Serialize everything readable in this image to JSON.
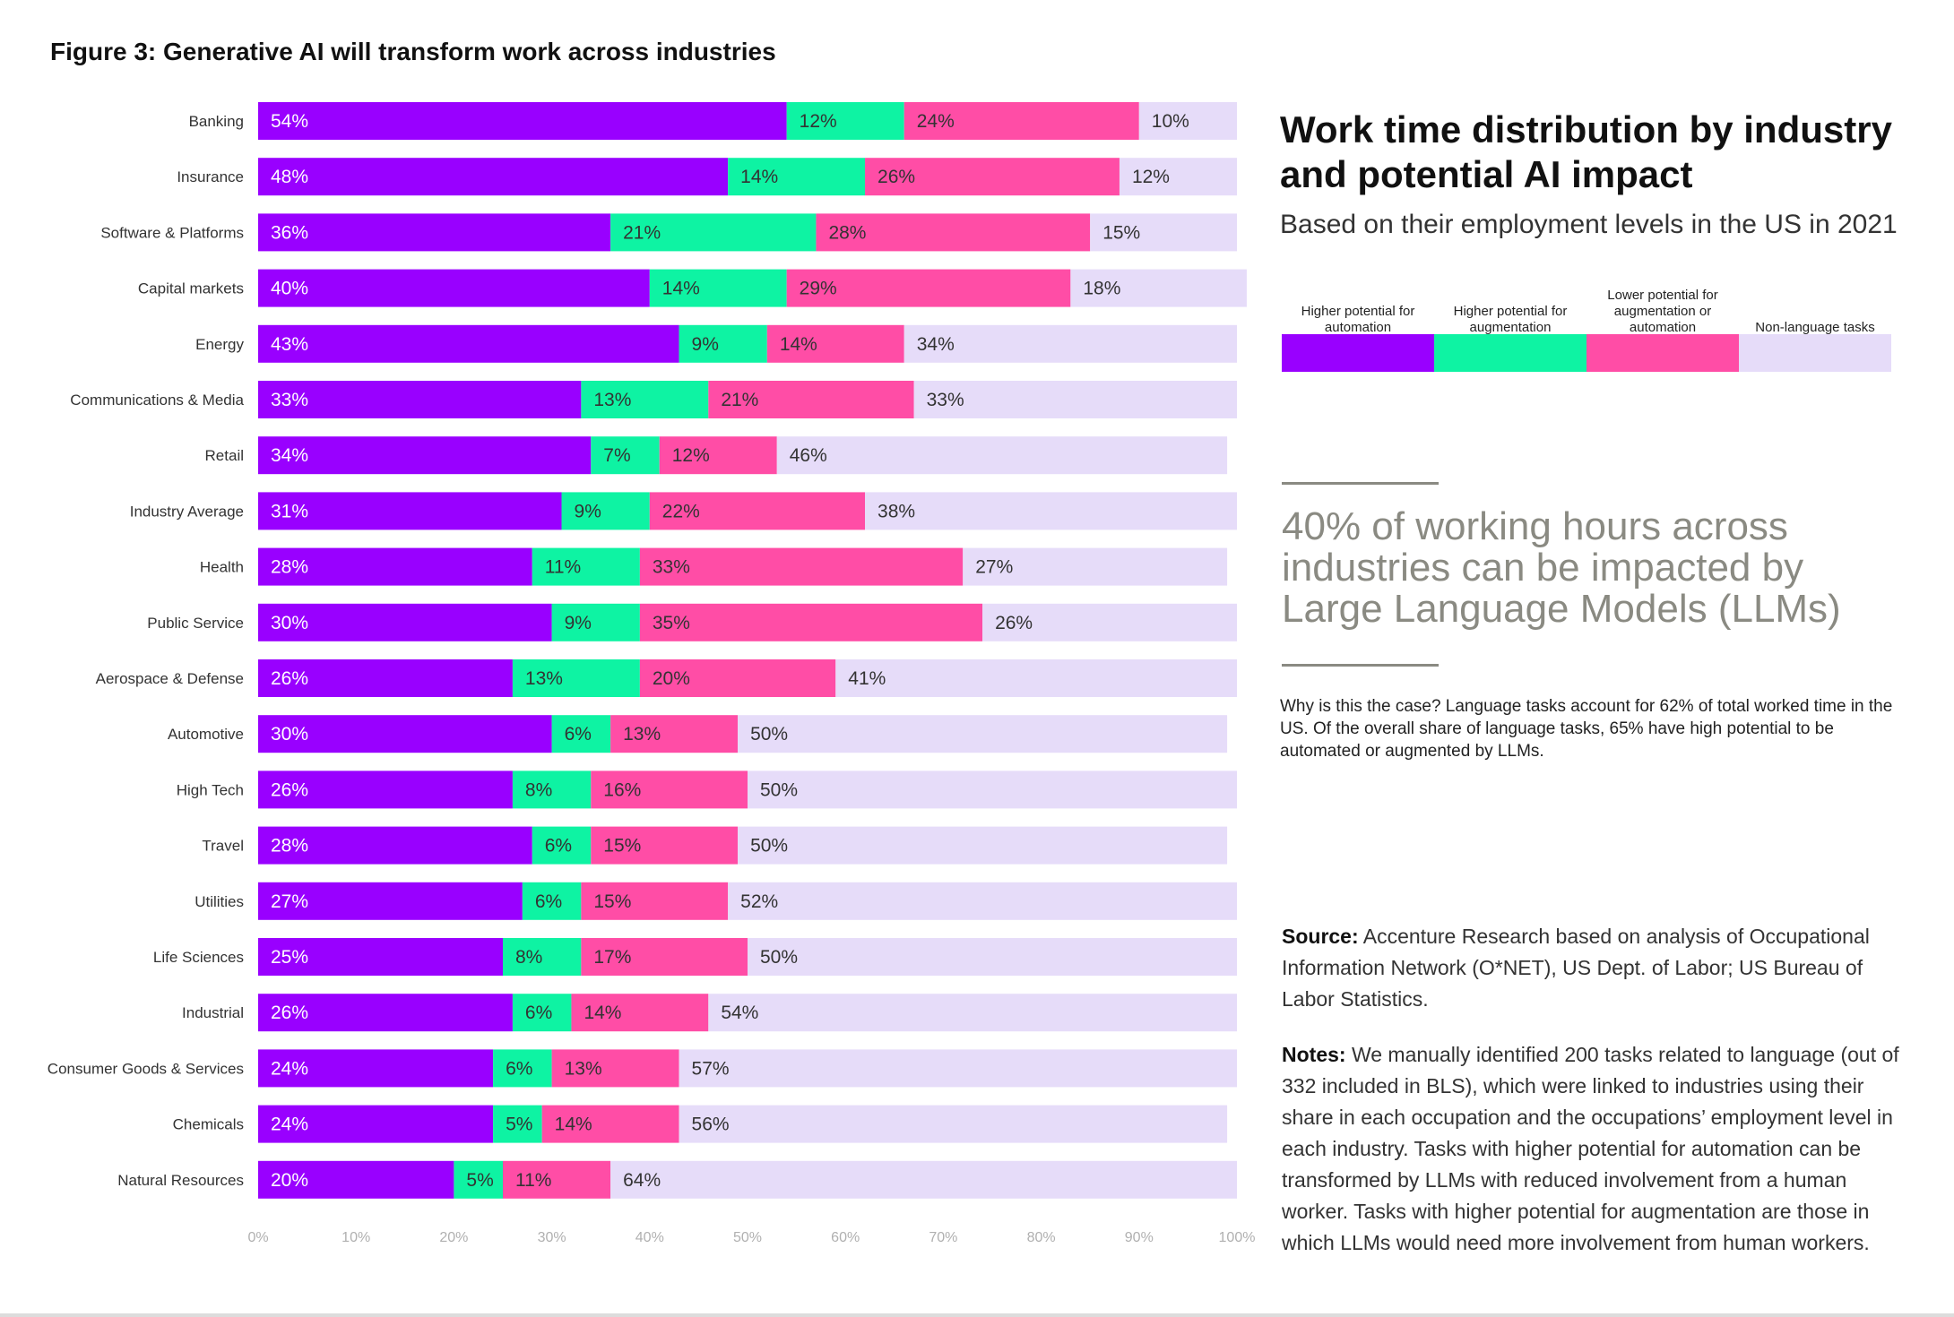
{
  "figure_title": {
    "bold": "Figure 3:",
    "rest": "Generative AI will transform work across industries"
  },
  "panel": {
    "title": "Work time distribution by industry and potential AI impact",
    "subtitle": "Based on their employment levels in the US in 2021",
    "quote": "40% of working hours across industries can be impacted by Large Language Models (LLMs)",
    "why": "Why is this the case? Language tasks account for 62% of total worked time in the US. Of the overall share of language tasks, 65% have high potential to be automated or augmented by LLMs.",
    "source_label": "Source:",
    "source_text": "Accenture Research based on analysis of Occupational Information Network (O*NET), US Dept. of Labor; US Bureau of Labor Statistics.",
    "notes_label": "Notes:",
    "notes_text": "We manually identified 200 tasks related to language (out of 332 included in BLS), which were linked to industries using their share in each occupation and the occupations’ employment level in each industry. Tasks with higher potential for automation can be transformed by LLMs with reduced involvement from a human worker. Tasks with higher potential for augmentation are those in which LLMs would need more involvement from human workers."
  },
  "colors": {
    "automation": "#9900ff",
    "augmentation": "#0ef3a3",
    "lower_potential": "#ff4da6",
    "non_language": "#e6dcf9",
    "label_light": "#ffffff",
    "label_dark": "#333333",
    "tick": "#b0b0b0"
  },
  "chart_data": {
    "type": "bar",
    "orientation": "horizontal",
    "stacked": true,
    "title": "Figure 3: Generative AI will transform work across industries",
    "categories": [
      "Banking",
      "Insurance",
      "Software & Platforms",
      "Capital markets",
      "Energy",
      "Communications & Media",
      "Retail",
      "Industry Average",
      "Health",
      "Public Service",
      "Aerospace & Defense",
      "Automotive",
      "High Tech",
      "Travel",
      "Utilities",
      "Life Sciences",
      "Industrial",
      "Consumer Goods & Services",
      "Chemicals",
      "Natural Resources"
    ],
    "series": [
      {
        "name": "Higher potential for automation",
        "values": [
          54,
          48,
          36,
          40,
          43,
          33,
          34,
          31,
          28,
          30,
          26,
          30,
          26,
          28,
          27,
          25,
          26,
          24,
          24,
          20
        ]
      },
      {
        "name": "Higher potential for augmentation",
        "values": [
          12,
          14,
          21,
          14,
          9,
          13,
          7,
          9,
          11,
          9,
          13,
          6,
          8,
          6,
          6,
          8,
          6,
          6,
          5,
          5
        ]
      },
      {
        "name": "Lower potential for augmentation or automation",
        "values": [
          24,
          26,
          28,
          29,
          14,
          21,
          12,
          22,
          33,
          35,
          20,
          13,
          16,
          15,
          15,
          17,
          14,
          13,
          14,
          11
        ]
      },
      {
        "name": "Non-language tasks",
        "values": [
          10,
          12,
          15,
          18,
          34,
          33,
          46,
          38,
          27,
          26,
          41,
          50,
          50,
          50,
          52,
          50,
          54,
          57,
          56,
          64
        ]
      }
    ],
    "x_ticks": [
      "0%",
      "10%",
      "20%",
      "30%",
      "40%",
      "50%",
      "60%",
      "70%",
      "80%",
      "90%",
      "100%"
    ],
    "xlim": [
      0,
      100
    ],
    "value_suffix": "%",
    "legend": [
      "Higher potential for automation",
      "Higher potential for augmentation",
      "Lower potential for augmentation or automation",
      "Non-language tasks"
    ]
  }
}
